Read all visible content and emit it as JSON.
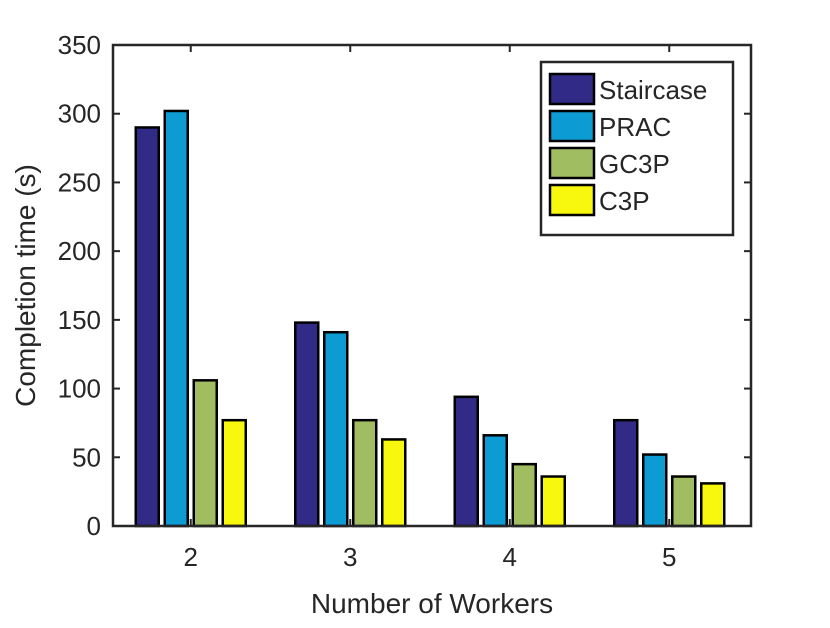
{
  "chart_data": {
    "type": "bar",
    "title": "",
    "xlabel": "Number of Workers",
    "ylabel": "Completion time (s)",
    "categories": [
      "2",
      "3",
      "4",
      "5"
    ],
    "ylim": [
      0,
      350
    ],
    "yticks": [
      "0",
      "50",
      "100",
      "150",
      "200",
      "250",
      "300",
      "350"
    ],
    "grid": false,
    "legend_position": "top-right",
    "series": [
      {
        "name": "Staircase",
        "color": "#312a87",
        "values": [
          290,
          148,
          94,
          77
        ]
      },
      {
        "name": "PRAC",
        "color": "#0d9bd3",
        "values": [
          302,
          141,
          66,
          52
        ]
      },
      {
        "name": "GC3P",
        "color": "#a1bd62",
        "values": [
          106,
          77,
          45,
          36
        ]
      },
      {
        "name": "C3P",
        "color": "#f8f80f",
        "values": [
          77,
          63,
          36,
          31
        ]
      }
    ]
  }
}
